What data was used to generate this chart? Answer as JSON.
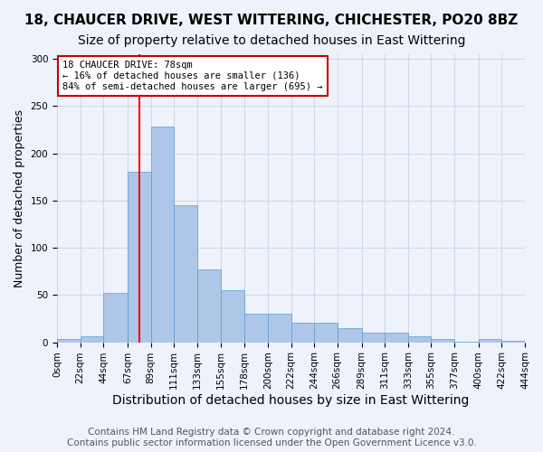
{
  "title1": "18, CHAUCER DRIVE, WEST WITTERING, CHICHESTER, PO20 8BZ",
  "title2": "Size of property relative to detached houses in East Wittering",
  "xlabel": "Distribution of detached houses by size in East Wittering",
  "ylabel": "Number of detached properties",
  "footer1": "Contains HM Land Registry data © Crown copyright and database right 2024.",
  "footer2": "Contains public sector information licensed under the Open Government Licence v3.0.",
  "bin_labels": [
    "0sqm",
    "22sqm",
    "44sqm",
    "67sqm",
    "89sqm",
    "111sqm",
    "133sqm",
    "155sqm",
    "178sqm",
    "200sqm",
    "222sqm",
    "244sqm",
    "266sqm",
    "289sqm",
    "311sqm",
    "333sqm",
    "355sqm",
    "377sqm",
    "400sqm",
    "422sqm",
    "444sqm"
  ],
  "bin_edges": [
    0,
    22,
    44,
    67,
    89,
    111,
    133,
    155,
    178,
    200,
    222,
    244,
    266,
    289,
    311,
    333,
    355,
    377,
    400,
    422,
    444
  ],
  "bar_heights": [
    3,
    6,
    52,
    181,
    228,
    145,
    77,
    55,
    30,
    30,
    21,
    21,
    15,
    10,
    10,
    6,
    3,
    1,
    3,
    2
  ],
  "bar_color": "#aec6e8",
  "bar_edge_color": "#5a9fd4",
  "red_line_x": 78,
  "annotation_text": "18 CHAUCER DRIVE: 78sqm\n← 16% of detached houses are smaller (136)\n84% of semi-detached houses are larger (695) →",
  "annotation_box_color": "#ffffff",
  "annotation_box_edge": "#cc0000",
  "ylim": [
    0,
    305
  ],
  "yticks": [
    0,
    50,
    100,
    150,
    200,
    250,
    300
  ],
  "grid_color": "#d0d8e8",
  "background_color": "#eef2fa",
  "title1_fontsize": 11,
  "title2_fontsize": 10,
  "xlabel_fontsize": 10,
  "ylabel_fontsize": 9,
  "tick_fontsize": 7.5,
  "footer_fontsize": 7.5
}
